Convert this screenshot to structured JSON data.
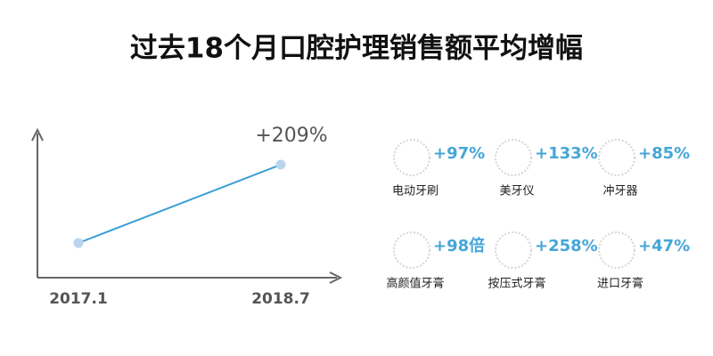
{
  "title": "过去18个月口腔护理销售额平均增幅",
  "chart_data": {
    "type": "line",
    "categories": [
      "2017.1",
      "2018.7"
    ],
    "values": [
      0,
      209
    ],
    "value_labels": [
      null,
      "+209%"
    ],
    "color": "#3a9fd6",
    "point_color": "#b9d4ee"
  },
  "items": [
    {
      "label": "电动牙刷",
      "growth": "+97%"
    },
    {
      "label": "美牙仪",
      "growth": "+133%"
    },
    {
      "label": "冲牙器",
      "growth": "+85%"
    },
    {
      "label": "高颜值牙膏",
      "growth": "+98倍"
    },
    {
      "label": "按压式牙膏",
      "growth": "+258%"
    },
    {
      "label": "进口牙膏",
      "growth": "+47%"
    }
  ]
}
